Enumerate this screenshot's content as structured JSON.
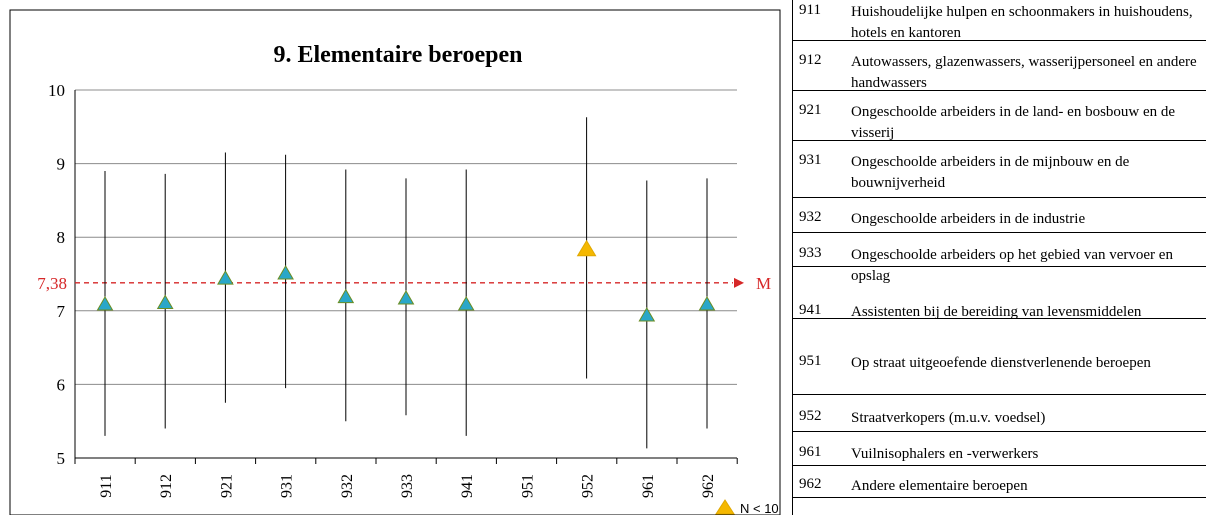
{
  "chart_data": {
    "type": "scatter",
    "title": "9. Elementaire beroepen",
    "categories": [
      "911",
      "912",
      "921",
      "931",
      "932",
      "933",
      "941",
      "951",
      "952",
      "961",
      "962"
    ],
    "series": [
      {
        "values": [
          7.1,
          7.12,
          7.45,
          7.52,
          7.2,
          7.18,
          7.1,
          null,
          7.85,
          6.95,
          7.1
        ],
        "low": [
          5.3,
          5.4,
          5.75,
          5.95,
          5.5,
          5.58,
          5.3,
          null,
          6.08,
          5.13,
          5.4
        ],
        "high": [
          8.9,
          8.86,
          9.15,
          9.12,
          8.92,
          8.8,
          8.92,
          null,
          9.63,
          8.77,
          8.8
        ],
        "small_n": [
          false,
          false,
          false,
          false,
          false,
          false,
          false,
          false,
          true,
          false,
          false
        ]
      }
    ],
    "ylim": [
      5,
      10
    ],
    "yticks": [
      5,
      6,
      7,
      8,
      9,
      10
    ],
    "reference_line": {
      "value": 7.38,
      "label_value": "7,38",
      "label_name": "M",
      "color": "#d62728"
    },
    "grid": true,
    "marker_color": "#2aa7c9",
    "marker_small_n_color": "#f5b800",
    "legend": {
      "label": "N < 10",
      "position": "bottom-right"
    }
  },
  "occupations": [
    {
      "code": "911",
      "desc": "Huishoudelijke hulpen en schoonmakers in huishoudens, hotels en kantoren"
    },
    {
      "code": "912",
      "desc": "Autowassers, glazenwassers, wasserijpersoneel en andere handwassers"
    },
    {
      "code": "921",
      "desc": "Ongeschoolde arbeiders in de land- en bosbouw en de visserij"
    },
    {
      "code": "931",
      "desc": "Ongeschoolde arbeiders in de mijnbouw en de bouwnijverheid"
    },
    {
      "code": "932",
      "desc": "Ongeschoolde arbeiders in de industrie"
    },
    {
      "code": "933",
      "desc": "Ongeschoolde arbeiders op het gebied van vervoer en opslag"
    },
    {
      "code": "941",
      "desc": "Assistenten bij de bereiding van levensmiddelen"
    },
    {
      "code": "951",
      "desc": "Op straat uitgeoefende dienstverlenende beroepen"
    },
    {
      "code": "952",
      "desc": "Straatverkopers (m.u.v. voedsel)"
    },
    {
      "code": "961",
      "desc": "Vuilnisophalers en -verwerkers"
    },
    {
      "code": "962",
      "desc": "Andere elementaire beroepen"
    }
  ]
}
